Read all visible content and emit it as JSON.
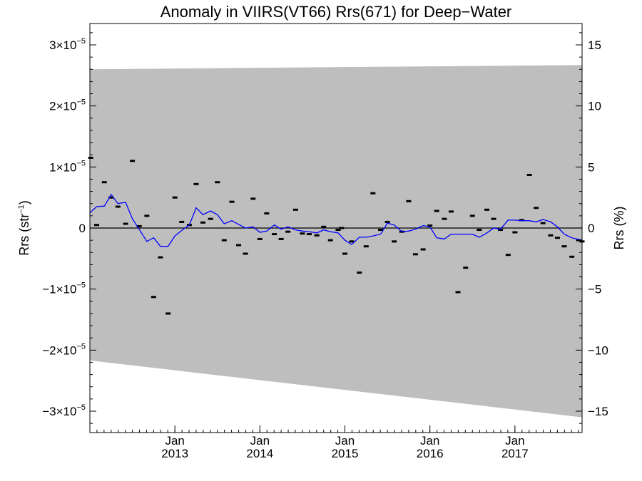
{
  "chart_data": {
    "type": "line",
    "title": "Anomaly in VIIRS(VT66) Rrs(671) for Deep−Water",
    "ylabel_left": "Rrs (str⁻¹)",
    "ylabel_left_parts": {
      "base": "Rrs (str",
      "exp": "−1",
      "close": ")"
    },
    "ylabel_right": "Rrs (%)",
    "y_left": {
      "lim": [
        -3.35e-05,
        3.35e-05
      ],
      "ticks": [
        {
          "value": -3e-05,
          "mant": "−3×10",
          "exp": "−5"
        },
        {
          "value": -2e-05,
          "mant": "−2×10",
          "exp": "−5"
        },
        {
          "value": -1e-05,
          "mant": "−1×10",
          "exp": "−5"
        },
        {
          "value": 0,
          "mant": "0",
          "exp": ""
        },
        {
          "value": 1e-05,
          "mant": "1×10",
          "exp": "−5"
        },
        {
          "value": 2e-05,
          "mant": "2×10",
          "exp": "−5"
        },
        {
          "value": 3e-05,
          "mant": "3×10",
          "exp": "−5"
        }
      ]
    },
    "y_right": {
      "lim": [
        -16.75,
        16.75
      ],
      "ticks": [
        {
          "value": -15,
          "label": "−15"
        },
        {
          "value": -10,
          "label": "−10"
        },
        {
          "value": -5,
          "label": "−5"
        },
        {
          "value": 0,
          "label": "0"
        },
        {
          "value": 5,
          "label": "5"
        },
        {
          "value": 10,
          "label": "10"
        },
        {
          "value": 15,
          "label": "15"
        }
      ]
    },
    "x": {
      "lim": [
        2012.0,
        2017.79
      ],
      "major_ticks": [
        {
          "value": 2013.0,
          "month": "Jan",
          "year": "2013"
        },
        {
          "value": 2014.0,
          "month": "Jan",
          "year": "2014"
        },
        {
          "value": 2015.0,
          "month": "Jan",
          "year": "2015"
        },
        {
          "value": 2016.0,
          "month": "Jan",
          "year": "2016"
        },
        {
          "value": 2017.0,
          "month": "Jan",
          "year": "2017"
        }
      ],
      "minor_tick_step_years": 0.0833333
    },
    "uncertainty_band": {
      "x": [
        2012.0,
        2017.79
      ],
      "upper": [
        2.6e-05,
        2.67e-05
      ],
      "lower": [
        -2.17e-05,
        -3.1e-05
      ]
    },
    "zero_line": 0,
    "series": [
      {
        "kind": "points",
        "color": "#000000",
        "x": [
          2012.01,
          2012.08,
          2012.17,
          2012.25,
          2012.33,
          2012.42,
          2012.5,
          2012.58,
          2012.67,
          2012.75,
          2012.83,
          2012.92,
          2013.0,
          2013.08,
          2013.17,
          2013.25,
          2013.33,
          2013.42,
          2013.5,
          2013.58,
          2013.67,
          2013.75,
          2013.83,
          2013.92,
          2014.0,
          2014.08,
          2014.17,
          2014.25,
          2014.33,
          2014.42,
          2014.5,
          2014.58,
          2014.67,
          2014.75,
          2014.83,
          2014.92,
          2014.96,
          2015.0,
          2015.08,
          2015.17,
          2015.25,
          2015.33,
          2015.42,
          2015.5,
          2015.58,
          2015.67,
          2015.75,
          2015.83,
          2015.92,
          2016.0,
          2016.08,
          2016.17,
          2016.25,
          2016.33,
          2016.42,
          2016.5,
          2016.58,
          2016.67,
          2016.75,
          2016.83,
          2016.92,
          2017.0,
          2017.08,
          2017.17,
          2017.25,
          2017.33,
          2017.42,
          2017.5,
          2017.58,
          2017.67,
          2017.75,
          2017.79
        ],
        "y": [
          1.15e-05,
          5e-07,
          7.5e-06,
          5e-06,
          3.5e-06,
          7e-07,
          1.1e-05,
          3e-07,
          2e-06,
          -1.13e-05,
          -4.8e-06,
          -1.4e-05,
          5e-06,
          1e-06,
          5e-07,
          7.2e-06,
          9e-07,
          1.5e-06,
          7.5e-06,
          -2e-06,
          4.3e-06,
          -2.8e-06,
          -4.2e-06,
          4.8e-06,
          -1.8e-06,
          2.4e-06,
          -1e-06,
          -1.8e-06,
          -6e-07,
          3e-06,
          -9e-07,
          -1e-06,
          -1.2e-06,
          2e-07,
          -2e-06,
          -3e-07,
          0.0,
          -4.2e-06,
          -2.2e-06,
          -7.3e-06,
          -3e-06,
          5.7e-06,
          -3e-07,
          1e-06,
          -2.2e-06,
          -6e-07,
          4.4e-06,
          -4.3e-06,
          -3.5e-06,
          4e-07,
          2.8e-06,
          1.5e-06,
          2.7e-06,
          -1.05e-05,
          -6.5e-06,
          2e-06,
          -3e-07,
          3e-06,
          1.5e-06,
          -3e-07,
          -4.4e-06,
          -7e-07,
          1.3e-06,
          8.7e-06,
          3.3e-06,
          8e-07,
          -1.2e-06,
          -1.6e-06,
          -3e-06,
          -4.7e-06,
          -2e-06,
          -2.2e-06
        ]
      },
      {
        "kind": "line",
        "color": "#0000ff",
        "x": [
          2012.0,
          2012.08,
          2012.17,
          2012.25,
          2012.33,
          2012.42,
          2012.5,
          2012.58,
          2012.67,
          2012.75,
          2012.83,
          2012.92,
          2013.0,
          2013.08,
          2013.17,
          2013.25,
          2013.33,
          2013.42,
          2013.5,
          2013.58,
          2013.67,
          2013.75,
          2013.83,
          2013.92,
          2014.0,
          2014.08,
          2014.17,
          2014.25,
          2014.33,
          2014.42,
          2014.5,
          2014.58,
          2014.67,
          2014.75,
          2014.83,
          2014.92,
          2015.0,
          2015.08,
          2015.17,
          2015.25,
          2015.33,
          2015.42,
          2015.5,
          2015.58,
          2015.67,
          2015.75,
          2015.83,
          2015.92,
          2016.0,
          2016.08,
          2016.17,
          2016.25,
          2016.33,
          2016.42,
          2016.5,
          2016.58,
          2016.67,
          2016.75,
          2016.83,
          2016.92,
          2017.0,
          2017.08,
          2017.17,
          2017.25,
          2017.33,
          2017.42,
          2017.5,
          2017.58,
          2017.67,
          2017.79
        ],
        "y": [
          2.5e-06,
          3.5e-06,
          3.6e-06,
          5.5e-06,
          4e-06,
          4.2e-06,
          1.5e-06,
          -2e-07,
          -2.2e-06,
          -1.6e-06,
          -3e-06,
          -3e-06,
          -1.3e-06,
          -4e-07,
          5e-07,
          3.3e-06,
          2.2e-06,
          2.8e-06,
          2.2e-06,
          7e-07,
          1.2e-06,
          6e-07,
          0.0,
          2e-07,
          -7e-07,
          -5e-07,
          5e-07,
          -2e-07,
          2e-07,
          -3e-07,
          -5e-07,
          -6e-07,
          -8e-07,
          -3e-07,
          -6e-07,
          -8e-07,
          -2e-06,
          -2.7e-06,
          -1.5e-06,
          -1.5e-06,
          -1.3e-06,
          -1e-06,
          8e-07,
          5e-07,
          -6e-07,
          -5e-07,
          -2e-07,
          4e-07,
          2e-07,
          -1.6e-06,
          -1.8e-06,
          -1e-06,
          -1e-06,
          -1e-06,
          -1e-06,
          -1.5e-06,
          -8e-07,
          0.0,
          -2e-07,
          1.3e-06,
          1.3e-06,
          1.2e-06,
          1.2e-06,
          1e-06,
          1.4e-06,
          1e-06,
          2e-07,
          -1e-06,
          -1.6e-06,
          -2e-06
        ]
      }
    ]
  }
}
